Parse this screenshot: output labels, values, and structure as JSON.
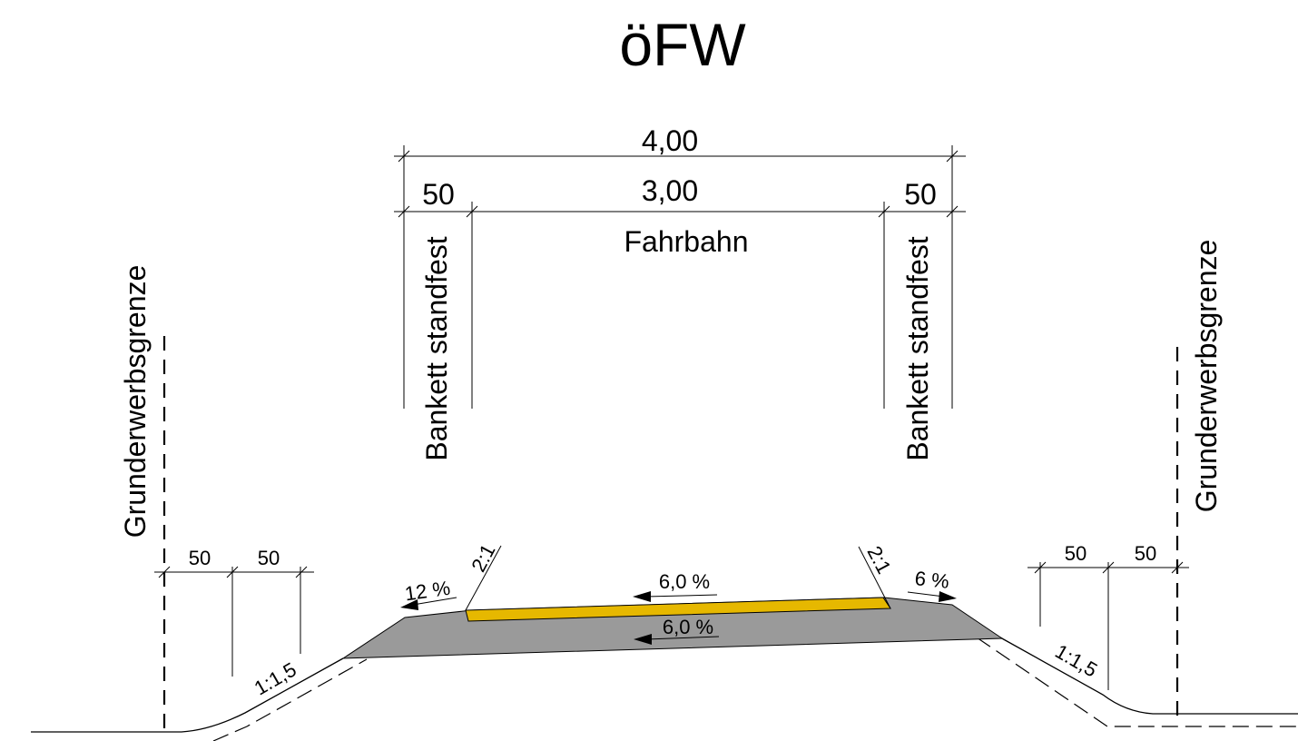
{
  "title": "öFW",
  "dimensions": {
    "total_width": "4,00",
    "left_shoulder_width": "50",
    "carriageway_width": "3,00",
    "right_shoulder_width": "50"
  },
  "labels": {
    "carriageway": "Fahrbahn",
    "shoulder_left": "Bankett standfest",
    "shoulder_right": "Bankett standfest",
    "boundary_left": "Grunderwerbsgrenze",
    "boundary_right": "Grunderwerbsgrenze"
  },
  "left_side": {
    "dim_a": "50",
    "dim_b": "50",
    "slope": "1:1,5"
  },
  "right_side": {
    "dim_a": "50",
    "dim_b": "50",
    "slope": "1:1,5"
  },
  "cross_slopes": {
    "left_shoulder": "12 %",
    "right_shoulder": "6 %",
    "surface": "6,0 %",
    "base": "6,0 %",
    "edge_left": "2:1",
    "edge_right": "2:1"
  },
  "colors": {
    "surface_layer": "#e6b800",
    "base_layer": "#9a9a9a",
    "line": "#000000"
  }
}
